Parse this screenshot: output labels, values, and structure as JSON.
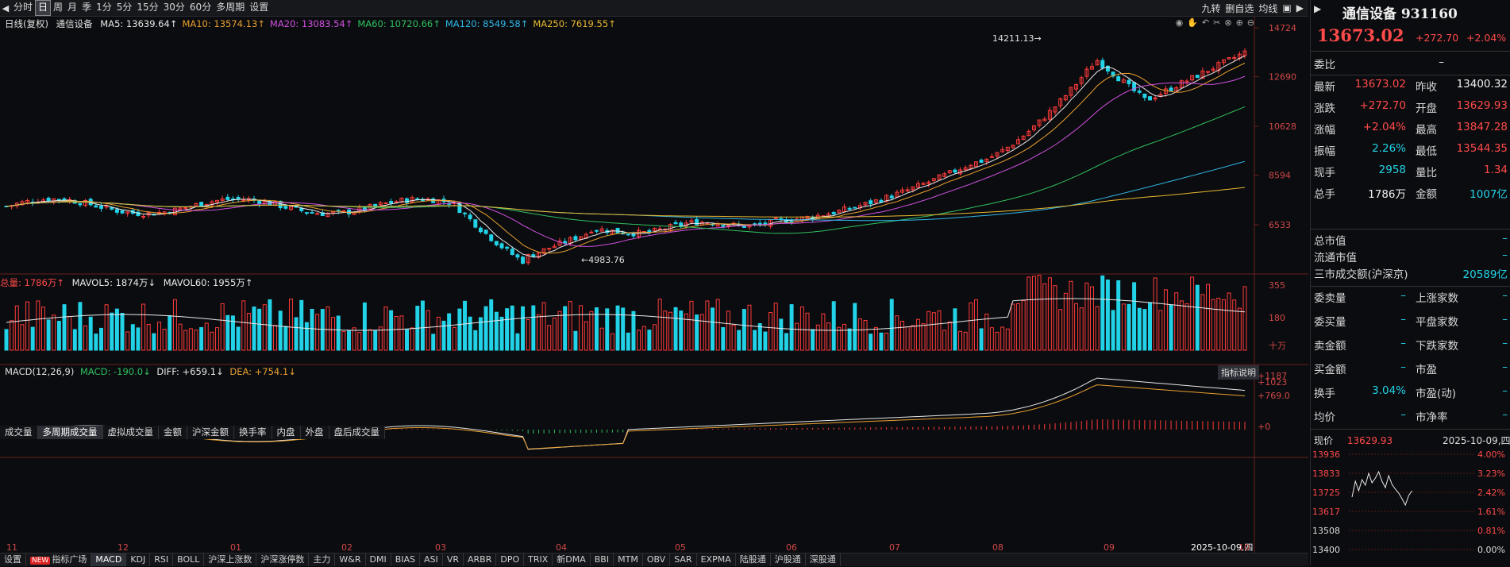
{
  "toolbar": {
    "periods": [
      "分时",
      "日",
      "周",
      "月",
      "季",
      "1分",
      "5分",
      "15分",
      "30分",
      "60分",
      "多周期",
      "设置"
    ],
    "active_period": "日",
    "right_items": [
      "九转",
      "删自选",
      "均线"
    ]
  },
  "ma_legend": {
    "prefix": "日线(复权)",
    "name": "通信设备",
    "items": [
      {
        "label": "MA5: 13639.64↑",
        "color": "#e8e8e8"
      },
      {
        "label": "MA10: 13574.13↑",
        "color": "#e8a030"
      },
      {
        "label": "MA20: 13083.54↑",
        "color": "#d050e0"
      },
      {
        "label": "MA60: 10720.66↑",
        "color": "#30c060"
      },
      {
        "label": "MA120: 8549.58↑",
        "color": "#30b8e8"
      },
      {
        "label": "MA250: 7619.55↑",
        "color": "#e8b830"
      }
    ]
  },
  "price_axis": [
    "14724",
    "12690",
    "10628",
    "8594",
    "6533"
  ],
  "annotations": {
    "high": "14211.13",
    "low": "4983.76"
  },
  "volume_legend": {
    "label": "总量: 1786万↑",
    "mavol5": "MAVOL5: 1874万↓",
    "mavol60": "MAVOL60: 1955万↑"
  },
  "volume_axis": [
    "355",
    "180",
    "十万"
  ],
  "indicator_tabs": [
    "成交量",
    "多周期成交量",
    "虚拟成交量",
    "金额",
    "沪深金额",
    "换手率",
    "内盘",
    "外盘",
    "盘后成交量"
  ],
  "indicator_active": "多周期成交量",
  "macd_legend": {
    "label": "MACD(12,26,9)",
    "macd": "MACD: -190.0↓",
    "diff": "DIFF: +659.1↓",
    "dea": "DEA: +754.1↓"
  },
  "macd_axis": [
    "+1187",
    "+1023",
    "+769.0",
    "+0"
  ],
  "indicator_help": "指标说明",
  "months": [
    "11",
    "12",
    "01",
    "02",
    "03",
    "04",
    "05",
    "06",
    "07",
    "08",
    "09",
    "2025-10-09,四",
    "10"
  ],
  "bottom_tabs": [
    "设置",
    "指标广场",
    "MACD",
    "KDJ",
    "RSI",
    "BOLL",
    "沪深上涨数",
    "沪深涨停数",
    "主力",
    "W&R",
    "DMI",
    "BIAS",
    "ASI",
    "VR",
    "ARBR",
    "DPO",
    "TRIX",
    "新DMA",
    "BBI",
    "MTM",
    "OBV",
    "SAR",
    "EXPMA",
    "陆股通",
    "沪股通",
    "深股通"
  ],
  "bottom_active": "MACD",
  "right_panel": {
    "title": "通信设备 931160",
    "price": "13673.02",
    "change": "+272.70",
    "change_pct": "+2.04%",
    "webi_label": "委比",
    "webi_value": "–",
    "rows": [
      {
        "l": "最新",
        "v1": "13673.02",
        "c1": "red",
        "l2": "昨收",
        "v2": "13400.32",
        "c2": "white"
      },
      {
        "l": "涨跌",
        "v1": "+272.70",
        "c1": "red",
        "l2": "开盘",
        "v2": "13629.93",
        "c2": "red"
      },
      {
        "l": "涨幅",
        "v1": "+2.04%",
        "c1": "red",
        "l2": "最高",
        "v2": "13847.28",
        "c2": "red"
      },
      {
        "l": "振幅",
        "v1": "2.26%",
        "c1": "cyan",
        "l2": "最低",
        "v2": "13544.35",
        "c2": "red"
      },
      {
        "l": "现手",
        "v1": "2958",
        "c1": "cyan",
        "l2": "量比",
        "v2": "1.34",
        "c2": "red"
      },
      {
        "l": "总手",
        "v1": "1786万",
        "c1": "white",
        "l2": "金额",
        "v2": "1007亿",
        "c2": "cyan"
      }
    ],
    "rows2": [
      {
        "l": "总市值",
        "v": "–"
      },
      {
        "l": "流通市值",
        "v": "–"
      },
      {
        "l": "三市成交额(沪深京)",
        "v": "20589亿"
      }
    ],
    "rows3": [
      {
        "l": "委卖量",
        "v1": "–",
        "l2": "上涨家数",
        "v2": "–"
      },
      {
        "l": "委买量",
        "v1": "–",
        "l2": "平盘家数",
        "v2": "–"
      },
      {
        "l": "卖金额",
        "v1": "–",
        "l2": "下跌家数",
        "v2": "–"
      },
      {
        "l": "买金额",
        "v1": "–",
        "l2": "市盈",
        "v2": "–"
      },
      {
        "l": "换手",
        "v1": "3.04%",
        "l2": "市盈(动)",
        "v2": "–"
      },
      {
        "l": "均价",
        "v1": "–",
        "l2": "市净率",
        "v2": "–"
      }
    ],
    "mini_header": {
      "label": "现价",
      "price": "13629.93",
      "date": "2025-10-09,四"
    },
    "mini_left_axis": [
      "13936",
      "13833",
      "13725",
      "13617",
      "13508",
      "13400"
    ],
    "mini_right_axis": [
      "4.00%",
      "3.23%",
      "2.42%",
      "1.61%",
      "0.81%",
      "0.00%"
    ]
  }
}
